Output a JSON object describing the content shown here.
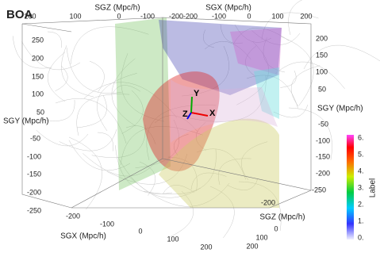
{
  "title": "BOA",
  "axes": {
    "top_sgz": {
      "label": "SGZ (Mpc/h)",
      "ticks": [
        "200",
        "100",
        "0",
        "-100",
        "-200"
      ]
    },
    "top_sgx": {
      "label": "SGX (Mpc/h)",
      "ticks": [
        "-200",
        "-100",
        "0",
        "100",
        "200"
      ]
    },
    "left_sgy": {
      "label": "SGY (Mpc/h)",
      "ticks": [
        "250",
        "200",
        "150",
        "100",
        "50",
        "-50",
        "-100",
        "-150",
        "-200",
        "-250"
      ]
    },
    "right_sgy": {
      "label": "SGY (Mpc/h)",
      "ticks": [
        "200",
        "150",
        "100",
        "50",
        "-50",
        "-100",
        "-150",
        "-200",
        "-250"
      ]
    },
    "bottom_sgx": {
      "label": "SGX (Mpc/h)",
      "ticks": [
        "-200",
        "-100",
        "0",
        "100",
        "200"
      ]
    },
    "bottom_sgz": {
      "label": "SGZ (Mpc/h)",
      "ticks": [
        "-200",
        "0",
        "100",
        "200"
      ]
    }
  },
  "orientation": {
    "x": "X",
    "y": "Y",
    "z": "Z"
  },
  "colorbar": {
    "label": "Label",
    "ticks": [
      "6.",
      "5.",
      "4.",
      "3.",
      "2.",
      "1.",
      "0."
    ]
  }
}
